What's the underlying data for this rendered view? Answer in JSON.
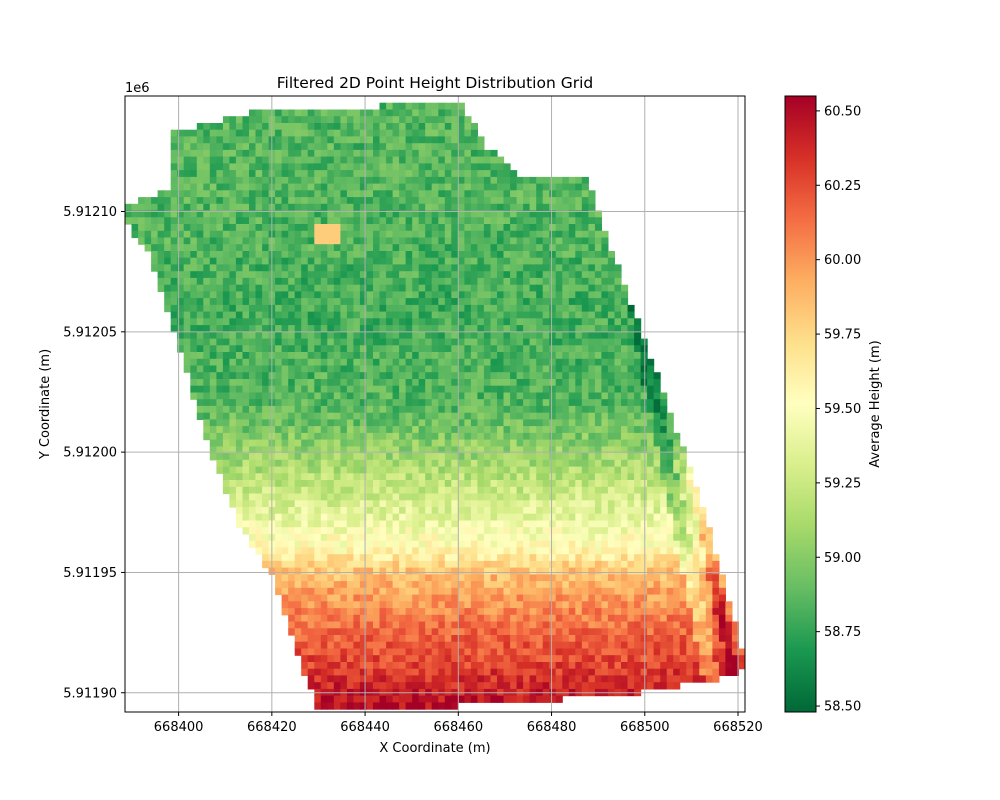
{
  "chart_data": {
    "type": "heatmap",
    "title": "Filtered 2D Point Height Distribution Grid",
    "xlabel": "X Coordinate (m)",
    "ylabel": "Y Coordinate (m)",
    "y_offset_label": "1e6",
    "xlim": [
      668388.5,
      668521.5
    ],
    "ylim": [
      5911189.2,
      5911214.8
    ],
    "x_ticks": [
      668400,
      668420,
      668440,
      668460,
      668480,
      668500,
      668520
    ],
    "x_tick_labels": [
      "668400",
      "668420",
      "668440",
      "668460",
      "668480",
      "668500",
      "668520"
    ],
    "y_ticks": [
      5911190,
      5911195,
      5911200,
      5911205,
      5911210
    ],
    "y_tick_labels": [
      "5.91190",
      "5.91195",
      "5.91200",
      "5.91205",
      "5.91210"
    ],
    "grid": true,
    "colormap": "RdYlGn_r",
    "colormap_stops": [
      "#006837",
      "#1a9850",
      "#66bd63",
      "#a6d96a",
      "#d9ef8b",
      "#ffffbf",
      "#fee08b",
      "#fdae61",
      "#f46d43",
      "#d73027",
      "#a50026"
    ],
    "colorbar": {
      "label": "Average Height (m)",
      "vmin": 58.48,
      "vmax": 60.55,
      "ticks": [
        58.5,
        58.75,
        59.0,
        59.25,
        59.5,
        59.75,
        60.0,
        60.25,
        60.5
      ],
      "tick_labels": [
        "58.50",
        "58.75",
        "59.00",
        "59.25",
        "59.50",
        "59.75",
        "60.00",
        "60.25",
        "60.50"
      ]
    },
    "footprint_outline": [
      [
        668397.8,
        5911213.2
      ],
      [
        668417.5,
        5911214.2
      ],
      [
        668460.5,
        5911214.5
      ],
      [
        668466.5,
        5911212.6
      ],
      [
        668474,
        5911211.4
      ],
      [
        668488,
        5911211.4
      ],
      [
        668490,
        5911210
      ],
      [
        668503,
        5911203
      ],
      [
        668512,
        5911198
      ],
      [
        668521,
        5911191.8
      ],
      [
        668521.5,
        5911191
      ],
      [
        668520,
        5911190.7
      ],
      [
        668498,
        5911190.0
      ],
      [
        668480,
        5911189.7
      ],
      [
        668455,
        5911189.4
      ],
      [
        668430,
        5911189.3
      ],
      [
        668428,
        5911190.2
      ],
      [
        668420,
        5911194.8
      ],
      [
        668413,
        5911197
      ],
      [
        668406,
        5911200.5
      ],
      [
        668399,
        5911205
      ],
      [
        668393,
        5911208.5
      ],
      [
        668388.5,
        5911209.5
      ],
      [
        668388.5,
        5911210.2
      ],
      [
        668398,
        5911211
      ]
    ],
    "height_profile": [
      {
        "y": 5911214.5,
        "z": 58.85
      },
      {
        "y": 5911210,
        "z": 58.85
      },
      {
        "y": 5911206,
        "z": 58.8
      },
      {
        "y": 5911202,
        "z": 58.85
      },
      {
        "y": 5911200,
        "z": 59.05
      },
      {
        "y": 5911198,
        "z": 59.3
      },
      {
        "y": 5911196,
        "z": 59.55
      },
      {
        "y": 5911195,
        "z": 59.85
      },
      {
        "y": 5911193,
        "z": 60.1
      },
      {
        "y": 5911191,
        "z": 60.3
      },
      {
        "y": 5911189.3,
        "z": 60.5
      }
    ]
  }
}
